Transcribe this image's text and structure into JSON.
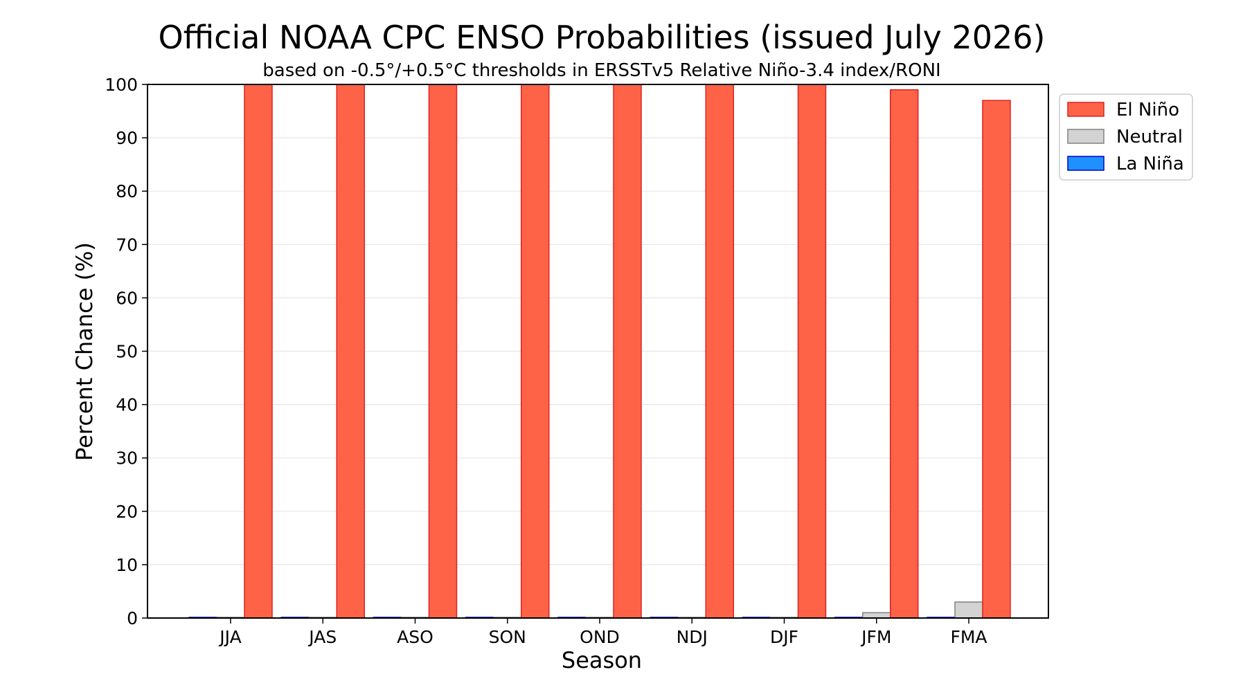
{
  "chart_data": {
    "type": "bar",
    "title": "Official NOAA CPC ENSO Probabilities (issued July 2026)",
    "subtitle": "based on -0.5°/+0.5°C thresholds in ERSSTv5 Relative Niño-3.4 index/RONI",
    "xlabel": "Season",
    "ylabel": "Percent Chance (%)",
    "ylim": [
      0,
      100
    ],
    "yticks": [
      0,
      10,
      20,
      30,
      40,
      50,
      60,
      70,
      80,
      90,
      100
    ],
    "grid": true,
    "legend_position": "right",
    "categories": [
      "JJA",
      "JAS",
      "ASO",
      "SON",
      "OND",
      "NDJ",
      "DJF",
      "JFM",
      "FMA"
    ],
    "series": [
      {
        "name": "La Niña",
        "color": "#1e90ff",
        "edge": "#0000cc",
        "values": [
          0,
          0,
          0,
          0,
          0,
          0,
          0,
          0,
          0
        ]
      },
      {
        "name": "Neutral",
        "color": "#d3d3d3",
        "edge": "#808080",
        "values": [
          0,
          0,
          0,
          0,
          0,
          0,
          0,
          1,
          3
        ]
      },
      {
        "name": "El Niño",
        "color": "#ff6347",
        "edge": "#dd2222",
        "values": [
          100,
          100,
          100,
          100,
          100,
          100,
          100,
          99,
          97
        ]
      }
    ],
    "legend_order": [
      "El Niño",
      "Neutral",
      "La Niña"
    ]
  }
}
